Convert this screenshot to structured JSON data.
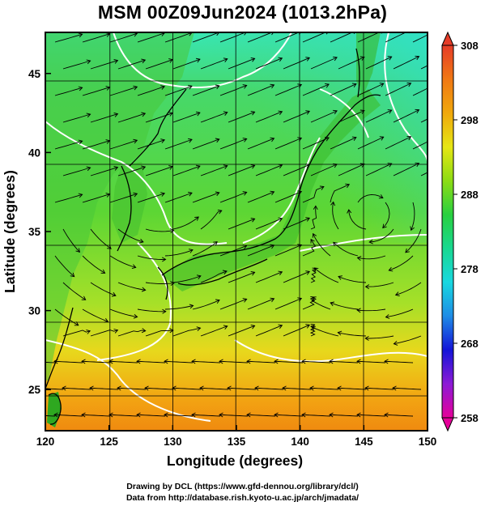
{
  "title": "MSM 00Z09Jun2024 (1013.2hPa)",
  "x_axis": {
    "label": "Longitude (degrees)",
    "ticks": [
      "120",
      "125",
      "130",
      "135",
      "140",
      "145",
      "150"
    ],
    "range": [
      120,
      150
    ]
  },
  "y_axis": {
    "label": "Latitude  (degrees)",
    "ticks": [
      "25",
      "30",
      "35",
      "40",
      "45"
    ],
    "range": [
      22.4,
      47.6
    ]
  },
  "colorbar": {
    "min": 258,
    "max": 308,
    "labels": [
      "308",
      "298",
      "288",
      "278",
      "268",
      "258"
    ],
    "colors": [
      "#e6009a",
      "#8c1ad6",
      "#1414d8",
      "#1e8ce6",
      "#18d8e0",
      "#18d890",
      "#28d040",
      "#8cdc14",
      "#e6e614",
      "#f0a80c",
      "#f07814",
      "#e63c28"
    ]
  },
  "credits": {
    "line1": "Drawing by DCL (https://www.gfd-dennou.org/library/dcl/)",
    "line2": "Data from http://database.rish.kyoto-u.ac.jp/arch/jmadata/"
  }
}
